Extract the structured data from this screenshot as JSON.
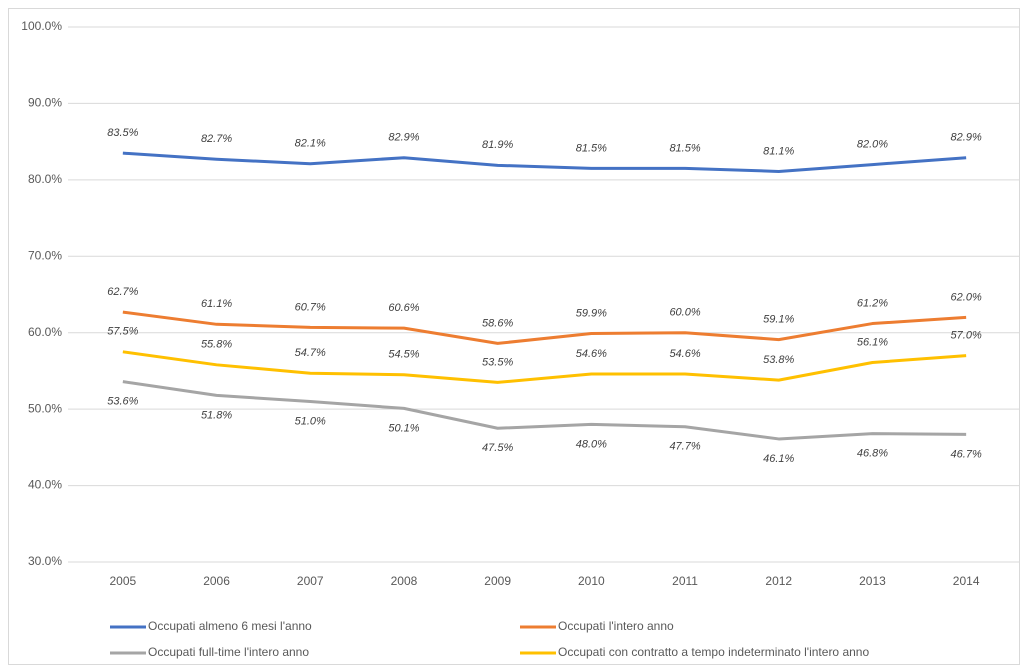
{
  "chart_data": {
    "type": "line",
    "categories": [
      "2005",
      "2006",
      "2007",
      "2008",
      "2009",
      "2010",
      "2011",
      "2012",
      "2013",
      "2014"
    ],
    "series": [
      {
        "name": "Occupati almeno 6 mesi l'anno",
        "color": "#4472c4",
        "label_position": "above",
        "values": [
          83.5,
          82.7,
          82.1,
          82.9,
          81.9,
          81.5,
          81.5,
          81.1,
          82.0,
          82.9
        ],
        "value_labels": [
          "83.5%",
          "82.7%",
          "82.1%",
          "82.9%",
          "81.9%",
          "81.5%",
          "81.5%",
          "81.1%",
          "82.0%",
          "82.9%"
        ]
      },
      {
        "name": "Occupati l'intero anno",
        "color": "#ed7d31",
        "label_position": "above",
        "values": [
          62.7,
          61.1,
          60.7,
          60.6,
          58.6,
          59.9,
          60.0,
          59.1,
          61.2,
          62.0
        ],
        "value_labels": [
          "62.7%",
          "61.1%",
          "60.7%",
          "60.6%",
          "58.6%",
          "59.9%",
          "60.0%",
          "59.1%",
          "61.2%",
          "62.0%"
        ]
      },
      {
        "name": "Occupati full-time l'intero anno",
        "color": "#a5a5a5",
        "label_position": "below",
        "values": [
          53.6,
          51.8,
          51.0,
          50.1,
          47.5,
          48.0,
          47.7,
          46.1,
          46.8,
          46.7
        ],
        "value_labels": [
          "53.6%",
          "51.8%",
          "51.0%",
          "50.1%",
          "47.5%",
          "48.0%",
          "47.7%",
          "46.1%",
          "46.8%",
          "46.7%"
        ]
      },
      {
        "name": "Occupati con contratto a tempo indeterminato l'intero anno",
        "color": "#ffc000",
        "label_position": "above",
        "values": [
          57.5,
          55.8,
          54.7,
          54.5,
          53.5,
          54.6,
          54.6,
          53.8,
          56.1,
          57.0
        ],
        "value_labels": [
          "57.5%",
          "55.8%",
          "54.7%",
          "54.5%",
          "53.5%",
          "54.6%",
          "54.6%",
          "53.8%",
          "56.1%",
          "57.0%"
        ]
      }
    ],
    "ylim": [
      30,
      100
    ],
    "yticks": [
      {
        "value": 30,
        "label": "30.0%"
      },
      {
        "value": 40,
        "label": "40.0%"
      },
      {
        "value": 50,
        "label": "50.0%"
      },
      {
        "value": 60,
        "label": "60.0%"
      },
      {
        "value": 70,
        "label": "70.0%"
      },
      {
        "value": 80,
        "label": "80.0%"
      },
      {
        "value": 90,
        "label": "90.0%"
      },
      {
        "value": 100,
        "label": "100.0%"
      }
    ],
    "grid": true,
    "legend": "bottom"
  }
}
